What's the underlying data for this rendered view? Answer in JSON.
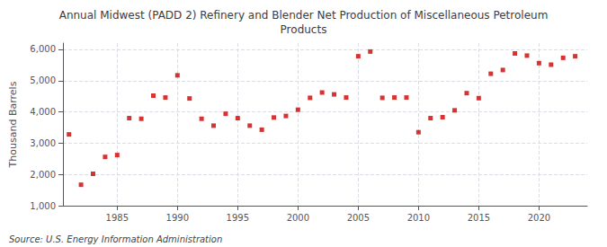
{
  "chart_data": {
    "type": "scatter",
    "title": "Annual Midwest (PADD 2) Refinery and Blender Net Production of Miscellaneous Petroleum\nProducts",
    "ylabel": "Thousand Barrels",
    "annotation": "Source: U.S. Energy Information Administration",
    "x": [
      1981,
      1982,
      1983,
      1984,
      1985,
      1986,
      1987,
      1988,
      1989,
      1990,
      1991,
      1992,
      1993,
      1994,
      1995,
      1996,
      1997,
      1998,
      1999,
      2000,
      2001,
      2002,
      2003,
      2004,
      2005,
      2006,
      2007,
      2008,
      2009,
      2010,
      2011,
      2012,
      2013,
      2014,
      2015,
      2016,
      2017,
      2018,
      2019,
      2020,
      2021,
      2022,
      2023
    ],
    "values": [
      3280,
      1670,
      2020,
      2560,
      2620,
      3800,
      3780,
      4520,
      4460,
      5170,
      4430,
      3780,
      3560,
      3940,
      3800,
      3560,
      3430,
      3820,
      3870,
      4070,
      4450,
      4620,
      4560,
      4460,
      5780,
      5930,
      4450,
      4460,
      4460,
      3350,
      3800,
      3830,
      4050,
      4600,
      4440,
      5220,
      5340,
      5870,
      5800,
      5560,
      5510,
      5730,
      5780
    ],
    "color": "#cc0000",
    "marker": "square",
    "xlim": [
      1980.5,
      2024
    ],
    "xticks": [
      1985,
      1990,
      1995,
      2000,
      2005,
      2010,
      2015,
      2020
    ],
    "ylim": [
      1000,
      6200
    ],
    "yticks": [
      {
        "value": 1000,
        "label": "1,000"
      },
      {
        "value": 2000,
        "label": "2,000"
      },
      {
        "value": 3000,
        "label": "3,000"
      },
      {
        "value": 4000,
        "label": "4,000"
      },
      {
        "value": 5000,
        "label": "5,000"
      },
      {
        "value": 6000,
        "label": "6,000"
      }
    ],
    "grid": true
  }
}
